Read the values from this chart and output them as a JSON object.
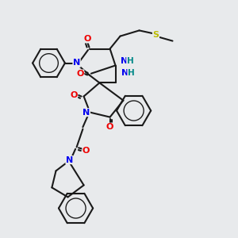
{
  "bg_color": "#e8eaec",
  "bond_color": "#1a1a1a",
  "bond_width": 1.5,
  "atom_colors": {
    "N": "#0000ee",
    "O": "#ee0000",
    "S": "#bbbb00",
    "H": "#008888",
    "C": "#1a1a1a"
  },
  "figsize": [
    3.0,
    3.0
  ],
  "dpi": 100
}
